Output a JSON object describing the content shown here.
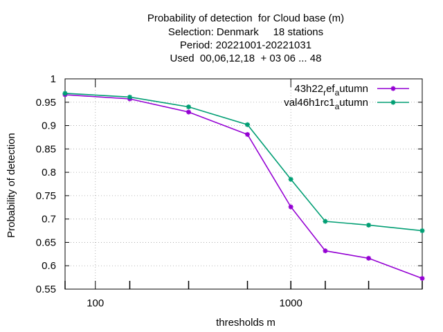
{
  "title_lines": [
    "Probability of detection  for Cloud base (m)",
    "Selection: Denmark     18 stations",
    "Period: 20221001-20221031",
    "Used  00,06,12,18  + 03 06 ... 48"
  ],
  "colors": {
    "series1": "#9400d3",
    "series2": "#009e73",
    "grid": "#a0a0a0",
    "axis": "#000000"
  },
  "chart_data": {
    "type": "line",
    "title": "Probability of detection  for Cloud base (m)",
    "xlabel": "thresholds m",
    "ylabel": "Probability of detection",
    "xscale": "log",
    "xlim": [
      70,
      4700
    ],
    "ylim": [
      0.55,
      1.0
    ],
    "x_ticks": [
      {
        "value": 100,
        "label": "100"
      },
      {
        "value": 1000,
        "label": "1000"
      }
    ],
    "y_ticks": [
      {
        "value": 0.55,
        "label": "0.55"
      },
      {
        "value": 0.6,
        "label": "0.6"
      },
      {
        "value": 0.65,
        "label": "0.65"
      },
      {
        "value": 0.7,
        "label": "0.7"
      },
      {
        "value": 0.75,
        "label": "0.75"
      },
      {
        "value": 0.8,
        "label": "0.8"
      },
      {
        "value": 0.85,
        "label": "0.85"
      },
      {
        "value": 0.9,
        "label": "0.9"
      },
      {
        "value": 0.95,
        "label": "0.95"
      },
      {
        "value": 1,
        "label": "1"
      }
    ],
    "x": [
      70,
      150,
      300,
      600,
      1000,
      1500,
      2500,
      4700
    ],
    "series": [
      {
        "name": "43h22_ref_autumn",
        "color": "#9400d3",
        "values": [
          0.966,
          0.957,
          0.929,
          0.881,
          0.726,
          0.632,
          0.616,
          0.573
        ]
      },
      {
        "name": "val46h1rc1_autumn",
        "color": "#009e73",
        "values": [
          0.969,
          0.961,
          0.94,
          0.902,
          0.785,
          0.695,
          0.687,
          0.675
        ]
      }
    ],
    "legend": [
      {
        "base": "43h22",
        "sub1": "r",
        "mid": "ef",
        "sub2": "a",
        "tail": "utumn"
      },
      {
        "base": "val46h1rc1",
        "sub1": "",
        "mid": "",
        "sub2": "a",
        "tail": "utumn"
      }
    ],
    "legend_position": "top-right",
    "grid": true
  }
}
